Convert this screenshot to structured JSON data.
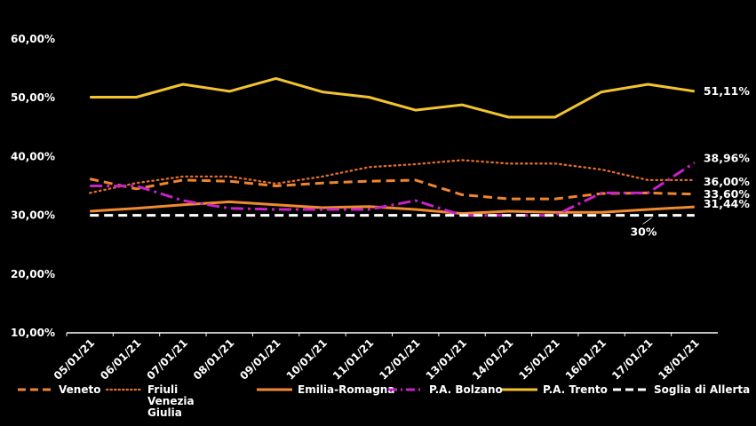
{
  "chart_data": {
    "type": "line",
    "categories": [
      "05/01/21",
      "06/01/21",
      "07/01/21",
      "08/01/21",
      "09/01/21",
      "10/01/21",
      "11/01/21",
      "12/01/21",
      "13/01/21",
      "14/01/21",
      "15/01/21",
      "16/01/21",
      "17/01/21",
      "18/01/21"
    ],
    "ylim": [
      10,
      60
    ],
    "yticks": [
      "10,00%",
      "20,00%",
      "30,00%",
      "40,00%",
      "50,00%",
      "60,00%"
    ],
    "grid": false,
    "legend_position": "bottom",
    "series": [
      {
        "name": "Veneto",
        "color": "#F0852D",
        "dash": "dashed",
        "values": [
          36.2,
          34.5,
          36.0,
          35.8,
          35.0,
          35.5,
          35.8,
          36.0,
          33.5,
          32.8,
          32.8,
          33.7,
          33.8,
          33.6
        ],
        "end_label": "33,60%"
      },
      {
        "name": "Friuli Venezia Giulia",
        "color": "#E36C2A",
        "dash": "dotted",
        "values": [
          33.8,
          35.5,
          36.6,
          36.6,
          35.4,
          36.6,
          38.2,
          38.7,
          39.4,
          38.8,
          38.8,
          37.8,
          36.0,
          36.0
        ],
        "end_label": "36,00%"
      },
      {
        "name": "Emilia-Romagna",
        "color": "#F08A2E",
        "dash": "solid",
        "values": [
          30.7,
          31.2,
          31.8,
          32.3,
          31.8,
          31.3,
          31.5,
          31.0,
          30.3,
          30.7,
          30.5,
          30.5,
          31.0,
          31.44
        ],
        "end_label": "31,44%"
      },
      {
        "name": "P.A. Bolzano",
        "color": "#C822C8",
        "dash": "dashdot",
        "values": [
          35.0,
          35.0,
          32.5,
          31.2,
          31.0,
          31.0,
          31.0,
          32.5,
          30.0,
          30.0,
          30.0,
          33.8,
          33.8,
          38.96
        ],
        "end_label": "38,96%"
      },
      {
        "name": "P.A. Trento",
        "color": "#F2C32F",
        "dash": "solid",
        "values": [
          50.1,
          50.1,
          52.3,
          51.1,
          53.3,
          51.0,
          50.1,
          47.9,
          48.8,
          46.7,
          46.7,
          51.0,
          52.3,
          51.11
        ],
        "end_label": "51,11%"
      },
      {
        "name": "Soglia di Allerta",
        "color": "#FFFFFF",
        "dash": "dashed-thick",
        "values": [
          30,
          30,
          30,
          30,
          30,
          30,
          30,
          30,
          30,
          30,
          30,
          30,
          30,
          30
        ],
        "end_label": "30%"
      }
    ]
  },
  "legend": {
    "items": [
      {
        "label": "Veneto"
      },
      {
        "label": "Friuli Venezia Giulia"
      },
      {
        "label": "Emilia-Romagna"
      },
      {
        "label": "P.A. Bolzano"
      },
      {
        "label": "P.A. Trento"
      },
      {
        "label": "Soglia di Allerta"
      }
    ]
  }
}
